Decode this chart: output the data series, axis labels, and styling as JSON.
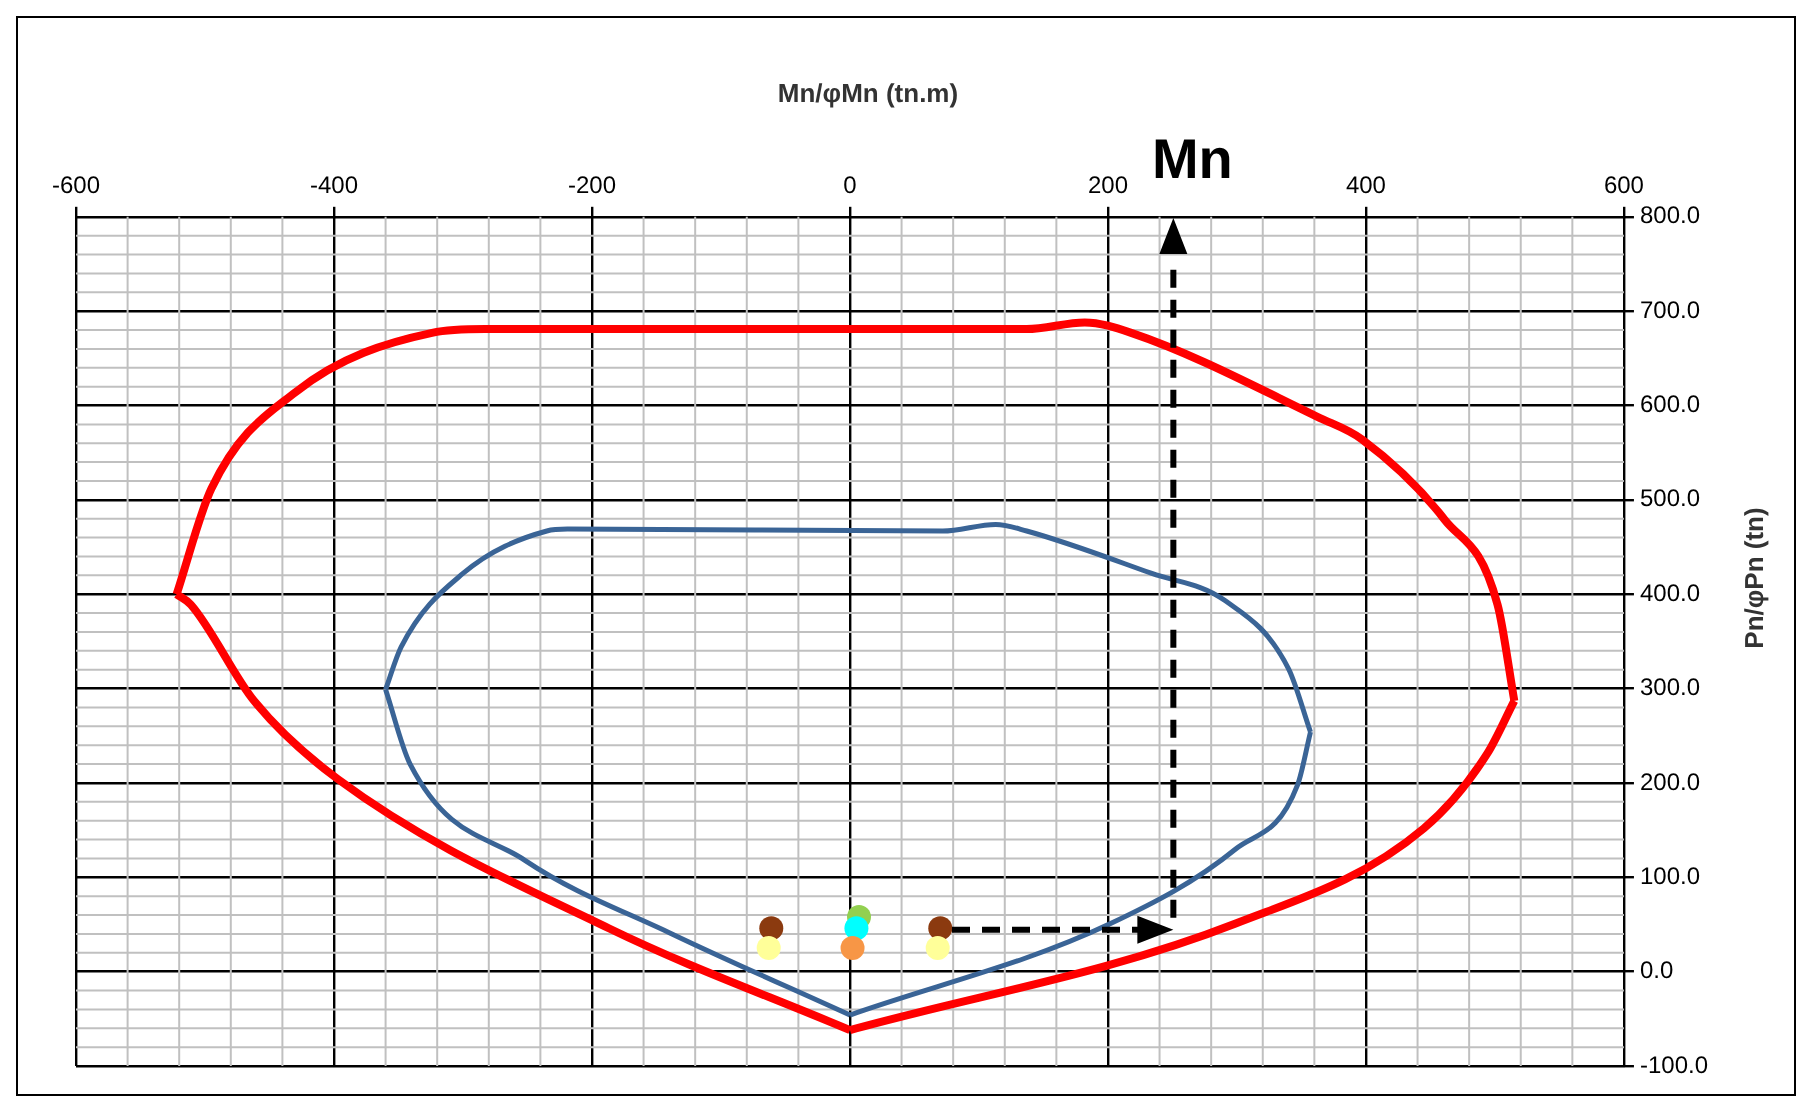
{
  "chart_data": {
    "type": "line",
    "xlabel": "Mn/φMn (tn.m)",
    "ylabel": "Pn/φPn (tn)",
    "xlim": [
      -600,
      600
    ],
    "xticks": [
      -600,
      -400,
      -200,
      0,
      200,
      400,
      600
    ],
    "ylim": [
      -100,
      800
    ],
    "yticks": [
      {
        "value": -100,
        "label": "-100.0"
      },
      {
        "value": 0,
        "label": "0.0"
      },
      {
        "value": 100,
        "label": "100.0"
      },
      {
        "value": 200,
        "label": "200.0"
      },
      {
        "value": 300,
        "label": "300.0"
      },
      {
        "value": 400,
        "label": "400.0"
      },
      {
        "value": 500,
        "label": "500.0"
      },
      {
        "value": 600,
        "label": "600.0"
      },
      {
        "value": 700,
        "label": "700.0"
      },
      {
        "value": 800,
        "label": "800.0"
      }
    ],
    "grid": true,
    "legend": false,
    "line_style": "solid",
    "series": [
      {
        "color": "#ff0000",
        "x": [
          -522,
          -511,
          -462,
          -397,
          -187,
          0
        ],
        "values": [
          400,
          389,
          287,
          204,
          46,
          -62
        ]
      },
      {
        "color": "#ff0000",
        "x": [
          -522,
          -495,
          -430,
          -324,
          -283,
          137,
          182,
          218,
          364,
          397,
          461,
          502,
          515
        ],
        "values": [
          400,
          512,
          614,
          677,
          681,
          681,
          688,
          677,
          587,
          564,
          479,
          389,
          287
        ]
      },
      {
        "color": "#ff0000",
        "x": [
          0,
          299,
          445,
          494,
          515
        ],
        "values": [
          -62,
          51,
          152,
          231,
          287
        ]
      },
      {
        "color": "#3a6496",
        "x": [
          -360,
          -341,
          -252,
          -138,
          0
        ],
        "values": [
          299,
          220,
          118,
          40,
          -46
        ]
      },
      {
        "color": "#3a6496",
        "x": [
          -360,
          -348,
          -300,
          -235,
          -219,
          72,
          113,
          137,
          234,
          291,
          340,
          357
        ],
        "values": [
          299,
          344,
          422,
          467,
          469,
          467,
          474,
          467,
          422,
          393,
          321,
          254
        ]
      },
      {
        "color": "#3a6496",
        "x": [
          0,
          202,
          299,
          347,
          357
        ],
        "values": [
          -46,
          51,
          130,
          198,
          254
        ]
      },
      {
        "type": "scatter",
        "marker": "circle",
        "x": [
          -61,
          -63,
          7,
          5,
          2,
          70,
          68
        ],
        "values": [
          46,
          25,
          58,
          46,
          25,
          46,
          25
        ],
        "colors": [
          "#8b3a0f",
          "#ffff99",
          "#92d050",
          "#00ffff",
          "#f79646",
          "#8b3a0f",
          "#ffff99"
        ]
      }
    ],
    "annotations": [
      "Mn"
    ]
  }
}
